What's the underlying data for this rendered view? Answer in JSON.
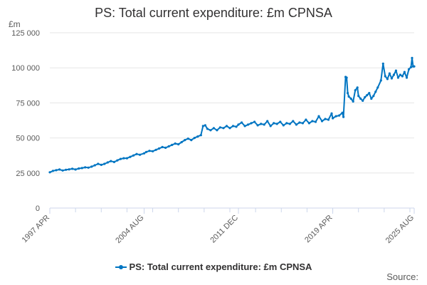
{
  "chart_data": {
    "type": "line",
    "title": "PS: Total current expenditure: £m CPNSA",
    "unit_label": "£m",
    "xlabel": "",
    "ylabel": "",
    "ylim": [
      0,
      125000
    ],
    "y_ticks": [
      0,
      25000,
      50000,
      75000,
      100000,
      125000
    ],
    "y_tick_labels": [
      "0",
      "25 000",
      "50 000",
      "75 000",
      "100 000",
      "125 000"
    ],
    "x_range": [
      "1997-04",
      "2025-08"
    ],
    "x_tick_labels": [
      {
        "date": "1997-04",
        "label": "1997 APR"
      },
      {
        "date": "2004-08",
        "label": "2004 AUG"
      },
      {
        "date": "2011-12",
        "label": "2011 DEC"
      },
      {
        "date": "2019-04",
        "label": "2019 APR"
      },
      {
        "date": "2025-08",
        "label": "2025 AUG"
      }
    ],
    "grid": true,
    "legend_position": "bottom",
    "series": [
      {
        "name": "PS: Total current expenditure: £m CPNSA",
        "color": "#0075c2",
        "points": [
          [
            "1997-04",
            25500
          ],
          [
            "1997-07",
            26500
          ],
          [
            "1997-10",
            27000
          ],
          [
            "1998-01",
            27500
          ],
          [
            "1998-04",
            26800
          ],
          [
            "1998-07",
            27300
          ],
          [
            "1998-10",
            27600
          ],
          [
            "1999-01",
            28000
          ],
          [
            "1999-04",
            27500
          ],
          [
            "1999-07",
            28200
          ],
          [
            "1999-10",
            28500
          ],
          [
            "2000-01",
            29000
          ],
          [
            "2000-04",
            28800
          ],
          [
            "2000-07",
            29500
          ],
          [
            "2000-10",
            30500
          ],
          [
            "2001-01",
            31500
          ],
          [
            "2001-04",
            30800
          ],
          [
            "2001-07",
            31500
          ],
          [
            "2001-10",
            32500
          ],
          [
            "2002-01",
            33500
          ],
          [
            "2002-04",
            32800
          ],
          [
            "2002-07",
            34000
          ],
          [
            "2002-10",
            35000
          ],
          [
            "2003-01",
            35500
          ],
          [
            "2003-04",
            35500
          ],
          [
            "2003-07",
            36500
          ],
          [
            "2003-10",
            37500
          ],
          [
            "2004-01",
            38500
          ],
          [
            "2004-04",
            38000
          ],
          [
            "2004-08",
            39000
          ],
          [
            "2004-10",
            40000
          ],
          [
            "2005-01",
            40800
          ],
          [
            "2005-04",
            40500
          ],
          [
            "2005-07",
            41500
          ],
          [
            "2005-10",
            42500
          ],
          [
            "2006-01",
            43500
          ],
          [
            "2006-04",
            43000
          ],
          [
            "2006-07",
            44000
          ],
          [
            "2006-10",
            45000
          ],
          [
            "2007-01",
            46000
          ],
          [
            "2007-04",
            45500
          ],
          [
            "2007-07",
            47000
          ],
          [
            "2007-10",
            48500
          ],
          [
            "2008-01",
            49500
          ],
          [
            "2008-04",
            48500
          ],
          [
            "2008-07",
            50000
          ],
          [
            "2008-10",
            51000
          ],
          [
            "2009-01",
            52000
          ],
          [
            "2009-03",
            58500
          ],
          [
            "2009-05",
            59000
          ],
          [
            "2009-07",
            56500
          ],
          [
            "2009-10",
            55500
          ],
          [
            "2010-01",
            57000
          ],
          [
            "2010-04",
            55500
          ],
          [
            "2010-07",
            57500
          ],
          [
            "2010-10",
            57000
          ],
          [
            "2011-01",
            58500
          ],
          [
            "2011-04",
            57000
          ],
          [
            "2011-07",
            58500
          ],
          [
            "2011-10",
            58000
          ],
          [
            "2011-12",
            59500
          ],
          [
            "2012-03",
            61000
          ],
          [
            "2012-06",
            58500
          ],
          [
            "2012-09",
            59500
          ],
          [
            "2012-12",
            60500
          ],
          [
            "2013-03",
            61500
          ],
          [
            "2013-06",
            59000
          ],
          [
            "2013-09",
            60000
          ],
          [
            "2013-12",
            59500
          ],
          [
            "2014-03",
            62000
          ],
          [
            "2014-06",
            58500
          ],
          [
            "2014-09",
            60500
          ],
          [
            "2014-12",
            60000
          ],
          [
            "2015-03",
            61500
          ],
          [
            "2015-06",
            59000
          ],
          [
            "2015-09",
            60500
          ],
          [
            "2015-12",
            60000
          ],
          [
            "2016-03",
            62000
          ],
          [
            "2016-06",
            59500
          ],
          [
            "2016-09",
            61000
          ],
          [
            "2016-12",
            60500
          ],
          [
            "2017-03",
            63000
          ],
          [
            "2017-06",
            60500
          ],
          [
            "2017-09",
            62000
          ],
          [
            "2017-12",
            61500
          ],
          [
            "2018-03",
            65500
          ],
          [
            "2018-06",
            62000
          ],
          [
            "2018-09",
            63500
          ],
          [
            "2018-12",
            63000
          ],
          [
            "2019-03",
            67500
          ],
          [
            "2019-04",
            64000
          ],
          [
            "2019-07",
            65500
          ],
          [
            "2019-10",
            66000
          ],
          [
            "2020-01",
            68000
          ],
          [
            "2020-02",
            65000
          ],
          [
            "2020-04",
            93500
          ],
          [
            "2020-05",
            93000
          ],
          [
            "2020-06",
            82000
          ],
          [
            "2020-07",
            79500
          ],
          [
            "2020-09",
            78000
          ],
          [
            "2020-11",
            76000
          ],
          [
            "2021-01",
            84000
          ],
          [
            "2021-03",
            86000
          ],
          [
            "2021-04",
            80000
          ],
          [
            "2021-06",
            78000
          ],
          [
            "2021-08",
            76500
          ],
          [
            "2021-10",
            79000
          ],
          [
            "2021-12",
            80500
          ],
          [
            "2022-02",
            82000
          ],
          [
            "2022-04",
            78000
          ],
          [
            "2022-06",
            80000
          ],
          [
            "2022-08",
            83000
          ],
          [
            "2022-10",
            86000
          ],
          [
            "2023-01",
            91000
          ],
          [
            "2023-03",
            103000
          ],
          [
            "2023-05",
            94000
          ],
          [
            "2023-07",
            92000
          ],
          [
            "2023-09",
            96000
          ],
          [
            "2023-11",
            92500
          ],
          [
            "2024-01",
            95000
          ],
          [
            "2024-03",
            98000
          ],
          [
            "2024-05",
            93000
          ],
          [
            "2024-07",
            95000
          ],
          [
            "2024-09",
            94000
          ],
          [
            "2024-11",
            97000
          ],
          [
            "2025-01",
            93000
          ],
          [
            "2025-03",
            99000
          ],
          [
            "2025-05",
            100500
          ],
          [
            "2025-06",
            107000
          ],
          [
            "2025-07",
            101000
          ],
          [
            "2025-08",
            101000
          ]
        ]
      }
    ]
  },
  "legend": {
    "label": "PS: Total current expenditure: £m CPNSA"
  },
  "source": {
    "label": "Source:"
  }
}
